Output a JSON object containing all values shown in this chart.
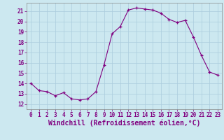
{
  "x": [
    0,
    1,
    2,
    3,
    4,
    5,
    6,
    7,
    8,
    9,
    10,
    11,
    12,
    13,
    14,
    15,
    16,
    17,
    18,
    19,
    20,
    21,
    22,
    23
  ],
  "y": [
    14.0,
    13.3,
    13.2,
    12.8,
    13.1,
    12.5,
    12.4,
    12.5,
    13.2,
    15.8,
    18.8,
    19.5,
    21.1,
    21.3,
    21.2,
    21.1,
    20.8,
    20.2,
    19.9,
    20.1,
    18.5,
    16.7,
    15.1,
    14.8
  ],
  "line_color": "#800080",
  "marker_color": "#800080",
  "bg_color": "#cce8f0",
  "grid_color": "#aaccdd",
  "xlabel": "Windchill (Refroidissement éolien,°C)",
  "xlabel_color": "#800080",
  "xlabel_fontsize": 7,
  "ylabel_ticks": [
    12,
    13,
    14,
    15,
    16,
    17,
    18,
    19,
    20,
    21
  ],
  "xtick_labels": [
    "0",
    "1",
    "2",
    "3",
    "4",
    "5",
    "6",
    "7",
    "8",
    "9",
    "10",
    "11",
    "12",
    "13",
    "14",
    "15",
    "16",
    "17",
    "18",
    "19",
    "20",
    "21",
    "22",
    "23"
  ],
  "ylim": [
    11.5,
    21.8
  ],
  "xlim": [
    -0.5,
    23.5
  ],
  "tick_fontsize": 5.5,
  "tick_color": "#800080",
  "spine_color": "#888888"
}
